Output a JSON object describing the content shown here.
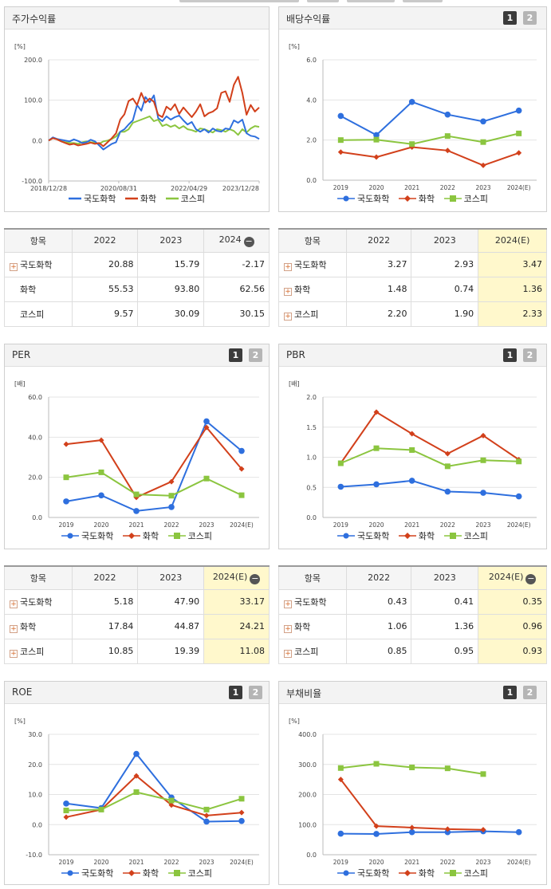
{
  "colors": {
    "국도화학": "#2e6fde",
    "화학": "#d2401b",
    "코스피": "#8bc53f",
    "hl_bg": "#fff8cc",
    "tab_on": "#3b3b3b",
    "tab_off": "#b5b5b5"
  },
  "legend": [
    "국도화학",
    "화학",
    "코스피"
  ],
  "tab_labels": [
    "1",
    "2"
  ],
  "chart_data": [
    {
      "id": "stock",
      "title": "주가수익률",
      "type": "line",
      "unit": "[%]",
      "ylim": [
        -100,
        200
      ],
      "yticks": [
        "200.0",
        "100.0",
        "0.0",
        "-100.0"
      ],
      "yticks_v": [
        200,
        100,
        0,
        -100
      ],
      "xlim": [
        0,
        100
      ],
      "xticks": [
        "2018/12/28",
        "2020/08/31",
        "2022/04/29",
        "2023/12/28"
      ],
      "xticks_v": [
        0,
        33.3,
        66.7,
        100
      ],
      "markers": false,
      "series": [
        {
          "name": "국도화학",
          "color_key": "국도화학",
          "x": [
            0,
            2,
            4,
            6,
            8,
            10,
            12,
            14,
            16,
            18,
            20,
            22,
            24,
            26,
            28,
            30,
            32,
            34,
            36,
            38,
            40,
            42,
            44,
            46,
            48,
            50,
            52,
            54,
            56,
            58,
            60,
            62,
            64,
            66,
            68,
            70,
            72,
            74,
            76,
            78,
            80,
            82,
            84,
            86,
            88,
            90,
            92,
            94,
            96,
            98,
            100
          ],
          "y": [
            0,
            8,
            4,
            2,
            0,
            -2,
            3,
            -1,
            -6,
            -4,
            2,
            -2,
            -12,
            -22,
            -15,
            -8,
            -4,
            22,
            28,
            40,
            50,
            88,
            74,
            108,
            95,
            112,
            56,
            48,
            60,
            52,
            58,
            62,
            50,
            40,
            46,
            28,
            22,
            28,
            20,
            30,
            24,
            22,
            30,
            28,
            50,
            44,
            52,
            18,
            12,
            10,
            4
          ]
        },
        {
          "name": "화학",
          "color_key": "화학",
          "x": [
            0,
            2,
            4,
            6,
            8,
            10,
            12,
            14,
            16,
            18,
            20,
            22,
            24,
            26,
            28,
            30,
            32,
            34,
            36,
            38,
            40,
            42,
            44,
            46,
            48,
            50,
            52,
            54,
            56,
            58,
            60,
            62,
            64,
            66,
            68,
            70,
            72,
            74,
            76,
            78,
            80,
            82,
            84,
            86,
            88,
            90,
            92,
            94,
            96,
            98,
            100
          ],
          "y": [
            0,
            6,
            3,
            -2,
            -6,
            -10,
            -8,
            -12,
            -10,
            -8,
            -5,
            -8,
            -6,
            -14,
            -4,
            6,
            18,
            52,
            65,
            98,
            104,
            88,
            118,
            94,
            104,
            96,
            64,
            58,
            84,
            76,
            90,
            66,
            82,
            70,
            58,
            72,
            90,
            60,
            68,
            72,
            80,
            118,
            122,
            96,
            138,
            158,
            118,
            64,
            88,
            72,
            82
          ]
        },
        {
          "name": "코스피",
          "color_key": "코스피",
          "x": [
            0,
            2,
            4,
            6,
            8,
            10,
            12,
            14,
            16,
            18,
            20,
            22,
            24,
            26,
            28,
            30,
            32,
            34,
            36,
            38,
            40,
            42,
            44,
            46,
            48,
            50,
            52,
            54,
            56,
            58,
            60,
            62,
            64,
            66,
            68,
            70,
            72,
            74,
            76,
            78,
            80,
            82,
            84,
            86,
            88,
            90,
            92,
            94,
            96,
            98,
            100
          ],
          "y": [
            0,
            6,
            4,
            -2,
            -4,
            -6,
            -6,
            -8,
            -4,
            -2,
            -4,
            -5,
            -8,
            -2,
            0,
            4,
            10,
            22,
            22,
            28,
            44,
            48,
            52,
            56,
            60,
            48,
            52,
            36,
            40,
            34,
            38,
            30,
            36,
            28,
            26,
            22,
            30,
            28,
            24,
            20,
            28,
            26,
            22,
            28,
            24,
            14,
            28,
            20,
            30,
            36,
            34
          ]
        }
      ]
    },
    {
      "id": "dividend",
      "title": "배당수익률",
      "type": "line",
      "unit": "[%]",
      "ylim": [
        0,
        6
      ],
      "yticks": [
        "6.0",
        "4.0",
        "2.0",
        "0.0"
      ],
      "yticks_v": [
        6,
        4,
        2,
        0
      ],
      "categories": [
        "2019",
        "2020",
        "2021",
        "2022",
        "2023",
        "2024(E)"
      ],
      "markers": true,
      "series": [
        {
          "name": "국도화학",
          "color_key": "국도화학",
          "values": [
            3.2,
            2.25,
            3.9,
            3.27,
            2.93,
            3.47
          ]
        },
        {
          "name": "화학",
          "color_key": "화학",
          "values": [
            1.4,
            1.15,
            1.65,
            1.48,
            0.74,
            1.36
          ]
        },
        {
          "name": "코스피",
          "color_key": "코스피",
          "values": [
            2.0,
            2.02,
            1.8,
            2.2,
            1.9,
            2.33
          ]
        }
      ]
    },
    {
      "id": "per",
      "title": "PER",
      "type": "line",
      "unit": "[배]",
      "ylim": [
        0,
        60
      ],
      "yticks": [
        "60.0",
        "40.0",
        "20.0",
        "0.0"
      ],
      "yticks_v": [
        60,
        40,
        20,
        0
      ],
      "categories": [
        "2019",
        "2020",
        "2021",
        "2022",
        "2023",
        "2024(E)"
      ],
      "markers": true,
      "series": [
        {
          "name": "국도화학",
          "color_key": "국도화학",
          "values": [
            8.0,
            11.0,
            3.2,
            5.18,
            47.9,
            33.17
          ]
        },
        {
          "name": "화학",
          "color_key": "화학",
          "values": [
            36.5,
            38.5,
            10.0,
            17.84,
            44.87,
            24.21
          ]
        },
        {
          "name": "코스피",
          "color_key": "코스피",
          "values": [
            20.0,
            22.5,
            11.5,
            10.85,
            19.39,
            11.08
          ]
        }
      ]
    },
    {
      "id": "pbr",
      "title": "PBR",
      "type": "line",
      "unit": "[배]",
      "ylim": [
        0,
        2
      ],
      "yticks": [
        "2.0",
        "1.5",
        "1.0",
        "0.5",
        "0.0"
      ],
      "yticks_v": [
        2,
        1.5,
        1,
        0.5,
        0
      ],
      "categories": [
        "2019",
        "2020",
        "2021",
        "2022",
        "2023",
        "2024(E)"
      ],
      "markers": true,
      "series": [
        {
          "name": "국도화학",
          "color_key": "국도화학",
          "values": [
            0.51,
            0.55,
            0.61,
            0.43,
            0.41,
            0.35
          ]
        },
        {
          "name": "화학",
          "color_key": "화학",
          "values": [
            0.9,
            1.75,
            1.39,
            1.06,
            1.36,
            0.96
          ]
        },
        {
          "name": "코스피",
          "color_key": "코스피",
          "values": [
            0.9,
            1.15,
            1.12,
            0.85,
            0.95,
            0.93
          ]
        }
      ]
    },
    {
      "id": "roe",
      "title": "ROE",
      "type": "line",
      "unit": "[%]",
      "ylim": [
        -10,
        30
      ],
      "yticks": [
        "30.0",
        "20.0",
        "10.0",
        "0.0",
        "-10.0"
      ],
      "yticks_v": [
        30,
        20,
        10,
        0,
        -10
      ],
      "categories": [
        "2019",
        "2020",
        "2021",
        "2022",
        "2023",
        "2024(E)"
      ],
      "markers": true,
      "series": [
        {
          "name": "국도화학",
          "color_key": "국도화학",
          "values": [
            7.0,
            5.5,
            23.5,
            9.0,
            1.0,
            1.2
          ]
        },
        {
          "name": "화학",
          "color_key": "화학",
          "values": [
            2.5,
            5.0,
            16.2,
            6.5,
            3.0,
            4.0
          ]
        },
        {
          "name": "코스피",
          "color_key": "코스피",
          "values": [
            4.7,
            5.0,
            10.8,
            8.0,
            5.0,
            8.6
          ]
        }
      ]
    },
    {
      "id": "debt",
      "title": "부채비율",
      "type": "line",
      "unit": "[%]",
      "ylim": [
        0,
        400
      ],
      "yticks": [
        "400.0",
        "300.0",
        "200.0",
        "100.0",
        "0.0"
      ],
      "yticks_v": [
        400,
        300,
        200,
        100,
        0
      ],
      "categories": [
        "2019",
        "2020",
        "2021",
        "2022",
        "2023",
        "2024(E)"
      ],
      "markers": true,
      "series": [
        {
          "name": "국도화학",
          "color_key": "국도화학",
          "values": [
            70,
            69,
            75,
            75,
            78,
            75
          ]
        },
        {
          "name": "화학",
          "color_key": "화학",
          "values": [
            250,
            95,
            90,
            85,
            83,
            null
          ]
        },
        {
          "name": "코스피",
          "color_key": "코스피",
          "values": [
            288,
            302,
            290,
            287,
            268,
            null
          ]
        }
      ]
    }
  ],
  "tables": [
    {
      "id": "stock_tbl",
      "headers": [
        "항목",
        "2022",
        "2023",
        "2024"
      ],
      "header_minus": true,
      "highlight_last": false,
      "rows": [
        {
          "name": "국도화학",
          "plus": true,
          "values": [
            "20.88",
            "15.79",
            "-2.17"
          ]
        },
        {
          "name": "화학",
          "plus": false,
          "values": [
            "55.53",
            "93.80",
            "62.56"
          ]
        },
        {
          "name": "코스피",
          "plus": false,
          "values": [
            "9.57",
            "30.09",
            "30.15"
          ]
        }
      ]
    },
    {
      "id": "dividend_tbl",
      "headers": [
        "항목",
        "2022",
        "2023",
        "2024(E)"
      ],
      "header_minus": false,
      "highlight_last": true,
      "rows": [
        {
          "name": "국도화학",
          "plus": true,
          "values": [
            "3.27",
            "2.93",
            "3.47"
          ]
        },
        {
          "name": "화학",
          "plus": true,
          "values": [
            "1.48",
            "0.74",
            "1.36"
          ]
        },
        {
          "name": "코스피",
          "plus": true,
          "values": [
            "2.20",
            "1.90",
            "2.33"
          ]
        }
      ]
    },
    {
      "id": "per_tbl",
      "headers": [
        "항목",
        "2022",
        "2023",
        "2024(E)"
      ],
      "header_minus": true,
      "highlight_last": true,
      "rows": [
        {
          "name": "국도화학",
          "plus": true,
          "values": [
            "5.18",
            "47.90",
            "33.17"
          ]
        },
        {
          "name": "화학",
          "plus": true,
          "values": [
            "17.84",
            "44.87",
            "24.21"
          ]
        },
        {
          "name": "코스피",
          "plus": true,
          "values": [
            "10.85",
            "19.39",
            "11.08"
          ]
        }
      ]
    },
    {
      "id": "pbr_tbl",
      "headers": [
        "항목",
        "2022",
        "2023",
        "2024(E)"
      ],
      "header_minus": true,
      "highlight_last": true,
      "rows": [
        {
          "name": "국도화학",
          "plus": true,
          "values": [
            "0.43",
            "0.41",
            "0.35"
          ]
        },
        {
          "name": "화학",
          "plus": true,
          "values": [
            "1.06",
            "1.36",
            "0.96"
          ]
        },
        {
          "name": "코스피",
          "plus": true,
          "values": [
            "0.85",
            "0.95",
            "0.93"
          ]
        }
      ]
    }
  ]
}
